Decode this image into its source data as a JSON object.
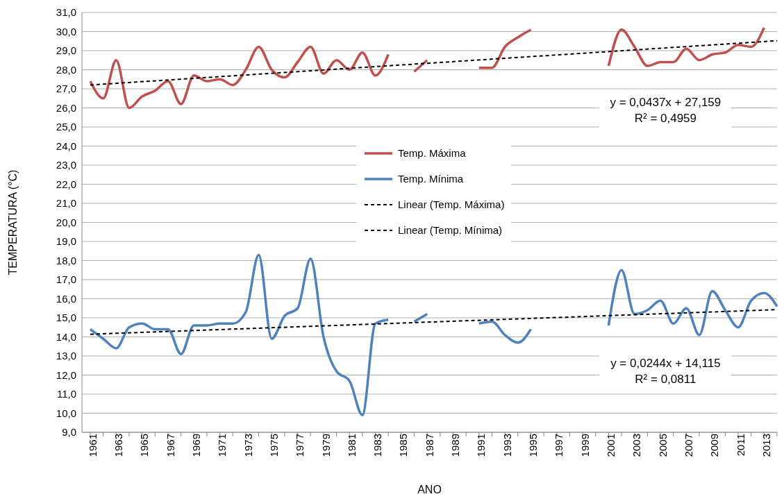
{
  "chart_data": {
    "type": "line",
    "xlabel": "ANO",
    "ylabel": "TEMPERATURA (°C)",
    "categories": [
      "1961",
      null,
      "1963",
      null,
      "1965",
      null,
      "1967",
      null,
      "1969",
      null,
      "1971",
      null,
      "1973",
      null,
      "1975",
      null,
      "1977",
      null,
      "1979",
      null,
      "1981",
      null,
      "1983",
      null,
      "1985",
      null,
      "1987",
      null,
      "1989",
      null,
      "1991",
      null,
      "1993",
      null,
      "1995",
      null,
      "1997",
      null,
      "1999",
      null,
      "2001",
      null,
      "2003",
      null,
      "2005",
      null,
      "2007",
      null,
      "2009",
      null,
      "2011",
      null,
      "2013",
      null
    ],
    "series": [
      {
        "name": "Temp. Máxima",
        "color": "#c0504d",
        "values": [
          27.4,
          26.5,
          28.5,
          26.0,
          26.6,
          26.9,
          27.4,
          26.2,
          27.7,
          27.4,
          27.5,
          27.2,
          28.0,
          29.2,
          28.0,
          27.6,
          28.4,
          29.2,
          27.8,
          28.5,
          28.0,
          28.9,
          27.7,
          28.8,
          null,
          27.9,
          28.5,
          null,
          null,
          null,
          28.1,
          28.1,
          29.2,
          29.7,
          30.1,
          null,
          null,
          null,
          null,
          null,
          28.2,
          30.1,
          29.2,
          28.2,
          28.4,
          28.4,
          29.1,
          28.5,
          28.8,
          28.9,
          29.3,
          29.2,
          30.2,
          null
        ]
      },
      {
        "name": "Temp. Mínima",
        "color": "#4f81bd",
        "values": [
          14.4,
          13.9,
          13.4,
          14.5,
          14.7,
          14.4,
          14.4,
          13.1,
          14.6,
          14.6,
          14.7,
          14.7,
          15.3,
          18.3,
          13.9,
          15.1,
          15.5,
          18.1,
          14.0,
          12.2,
          11.7,
          9.9,
          14.7,
          14.9,
          null,
          14.8,
          15.2,
          null,
          null,
          null,
          14.7,
          14.8,
          14.1,
          13.7,
          14.4,
          null,
          null,
          null,
          null,
          null,
          14.6,
          17.5,
          15.2,
          15.4,
          15.9,
          14.7,
          15.5,
          14.1,
          16.4,
          15.4,
          14.5,
          15.9,
          16.3,
          15.6
        ]
      },
      {
        "name": "Linear (Temp. Máxima)",
        "color": "#000000",
        "line_style": "dashed",
        "values": [
          27.2,
          null,
          null,
          null,
          null,
          null,
          null,
          null,
          null,
          null,
          null,
          null,
          null,
          null,
          null,
          null,
          null,
          null,
          null,
          null,
          null,
          null,
          null,
          null,
          null,
          null,
          null,
          null,
          null,
          null,
          null,
          null,
          null,
          null,
          null,
          null,
          null,
          null,
          null,
          null,
          null,
          null,
          null,
          null,
          null,
          null,
          null,
          null,
          null,
          null,
          null,
          null,
          null,
          29.52
        ]
      },
      {
        "name": "Linear (Temp. Mínima)",
        "color": "#000000",
        "line_style": "dashed",
        "values": [
          14.14,
          null,
          null,
          null,
          null,
          null,
          null,
          null,
          null,
          null,
          null,
          null,
          null,
          null,
          null,
          null,
          null,
          null,
          null,
          null,
          null,
          null,
          null,
          null,
          null,
          null,
          null,
          null,
          null,
          null,
          null,
          null,
          null,
          null,
          null,
          null,
          null,
          null,
          null,
          null,
          null,
          null,
          null,
          null,
          null,
          null,
          null,
          null,
          null,
          null,
          null,
          null,
          null,
          15.43
        ]
      }
    ],
    "ylim": [
      9,
      31
    ],
    "yticks": [
      {
        "value": 9,
        "label": "9,0"
      },
      {
        "value": 10,
        "label": "10,0"
      },
      {
        "value": 11,
        "label": "11,0"
      },
      {
        "value": 12,
        "label": "12,0"
      },
      {
        "value": 13,
        "label": "13,0"
      },
      {
        "value": 14,
        "label": "14,0"
      },
      {
        "value": 15,
        "label": "15,0"
      },
      {
        "value": 16,
        "label": "16,0"
      },
      {
        "value": 17,
        "label": "17,0"
      },
      {
        "value": 18,
        "label": "18,0"
      },
      {
        "value": 19,
        "label": "19,0"
      },
      {
        "value": 20,
        "label": "20,0"
      },
      {
        "value": 21,
        "label": "21,0"
      },
      {
        "value": 22,
        "label": "22,0"
      },
      {
        "value": 23,
        "label": "23,0"
      },
      {
        "value": 24,
        "label": "24,0"
      },
      {
        "value": 25,
        "label": "25,0"
      },
      {
        "value": 26,
        "label": "26,0"
      },
      {
        "value": 27,
        "label": "27,0"
      },
      {
        "value": 28,
        "label": "28,0"
      },
      {
        "value": 29,
        "label": "29,0"
      },
      {
        "value": 30,
        "label": "30,0"
      },
      {
        "value": 31,
        "label": "31,0"
      }
    ],
    "grid": "y",
    "legend": "center",
    "marker": "none",
    "line_style": "solid",
    "annotations": [
      "y = 0,0437x + 27,159\nR² = 0,4959",
      "y = 0,0244x + 14,115\nR² = 0,0811"
    ]
  }
}
